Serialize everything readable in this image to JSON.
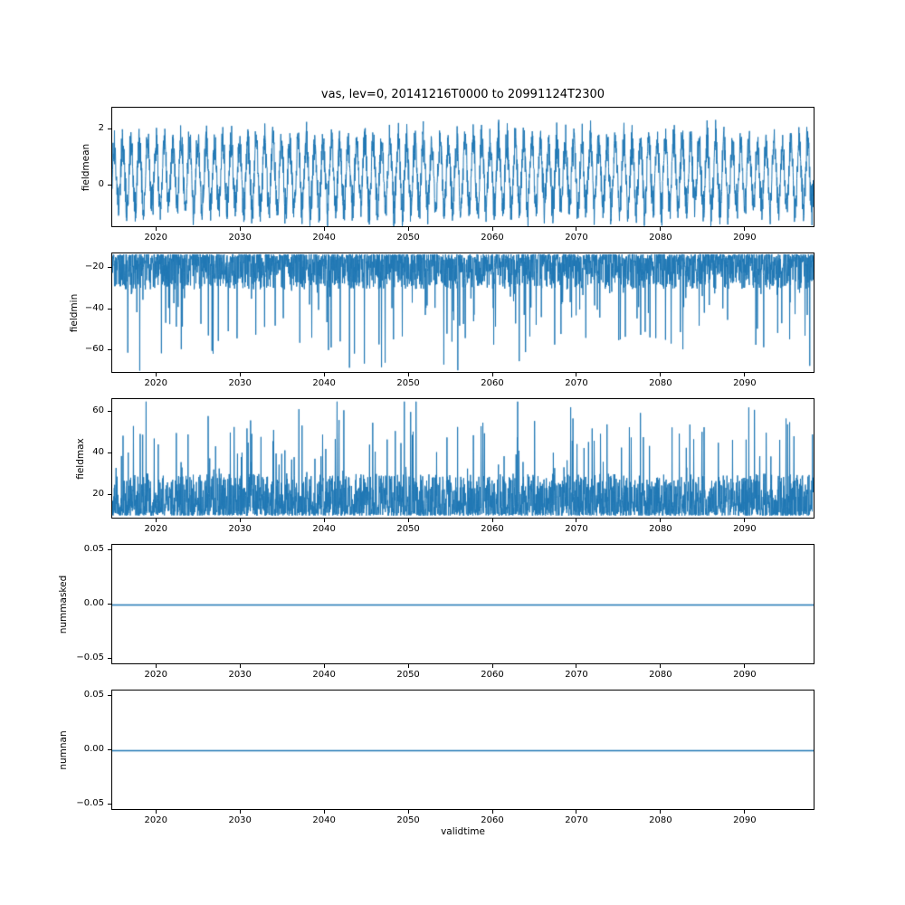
{
  "figure": {
    "title": "vas, lev=0, 20141216T0000 to 20991124T2300",
    "xlabel": "validtime",
    "line_color": "#1f77b4",
    "background": "#ffffff",
    "xlim": [
      2014.7,
      2098.3
    ],
    "xticks": {
      "values": [
        2020,
        2030,
        2040,
        2050,
        2060,
        2070,
        2080,
        2090
      ],
      "labels": [
        "2020",
        "2030",
        "2040",
        "2050",
        "2060",
        "2070",
        "2080",
        "2090"
      ]
    }
  },
  "chart_data": [
    {
      "type": "line",
      "name": "fieldmean",
      "ylabel": "fieldmean",
      "ylim": [
        -1.52,
        2.81
      ],
      "yticks": {
        "values": [
          0,
          2
        ],
        "labels": [
          "0",
          "2"
        ]
      },
      "x_range_time": [
        "20141216T0000",
        "20991124T2300"
      ],
      "signal": {
        "kind": "seasonal_noise",
        "seed": 101,
        "n": 3108,
        "cycles": 84,
        "base": 0.4,
        "seasonal_amp": 1.3,
        "amp_jitter": 0.5,
        "noise": 0.55,
        "clamp": [
          -1.5,
          2.65
        ],
        "summary": "annual oscillation, dense band about -1.5 to 2.5, extremes near -1.5 and 2.7"
      }
    },
    {
      "type": "line",
      "name": "fieldmin",
      "ylabel": "fieldmin",
      "ylim": [
        -71,
        -12.8
      ],
      "yticks": {
        "values": [
          -20,
          -40,
          -60
        ],
        "labels": [
          "−20",
          "−40",
          "−60"
        ]
      },
      "x_range_time": [
        "20141216T0000",
        "20991124T2300"
      ],
      "signal": {
        "kind": "spiky",
        "seed": 202,
        "n": 3108,
        "base": -13.2,
        "dir": -1,
        "dense": 17,
        "dense_pow": 2,
        "spike_prob": 0.05,
        "spike_min": 8,
        "spike_max": 44,
        "clamp": [
          -70.5,
          -13.0
        ],
        "summary": "dense band about -13 to -30 with frequent downward spikes reaching about -70"
      }
    },
    {
      "type": "line",
      "name": "fieldmax",
      "ylabel": "fieldmax",
      "ylim": [
        8.6,
        66.2
      ],
      "yticks": {
        "values": [
          20,
          40,
          60
        ],
        "labels": [
          "20",
          "40",
          "60"
        ]
      },
      "x_range_time": [
        "20141216T0000",
        "20991124T2300"
      ],
      "signal": {
        "kind": "spiky",
        "seed": 303,
        "n": 3108,
        "base": 10.5,
        "dir": 1,
        "dense": 20,
        "dense_pow": 2,
        "spike_prob": 0.05,
        "spike_min": 12,
        "spike_max": 42,
        "clamp": [
          10.0,
          65.0
        ],
        "summary": "dense band about 10 to 32 with frequent upward spikes reaching about 65"
      }
    },
    {
      "type": "line",
      "name": "nummasked",
      "ylabel": "nummasked",
      "ylim": [
        -0.0558,
        0.0558
      ],
      "yticks": {
        "values": [
          -0.05,
          0,
          0.05
        ],
        "labels": [
          "−0.05",
          "0.00",
          "0.05"
        ]
      },
      "x_range_time": [
        "20141216T0000",
        "20991124T2300"
      ],
      "signal": {
        "kind": "constant",
        "value": 0,
        "summary": "constant zero line"
      }
    },
    {
      "type": "line",
      "name": "numnan",
      "ylabel": "numnan",
      "ylim": [
        -0.0558,
        0.0558
      ],
      "yticks": {
        "values": [
          -0.05,
          0,
          0.05
        ],
        "labels": [
          "−0.05",
          "0.00",
          "0.05"
        ]
      },
      "x_range_time": [
        "20141216T0000",
        "20991124T2300"
      ],
      "signal": {
        "kind": "constant",
        "value": 0,
        "summary": "constant zero line"
      }
    }
  ]
}
